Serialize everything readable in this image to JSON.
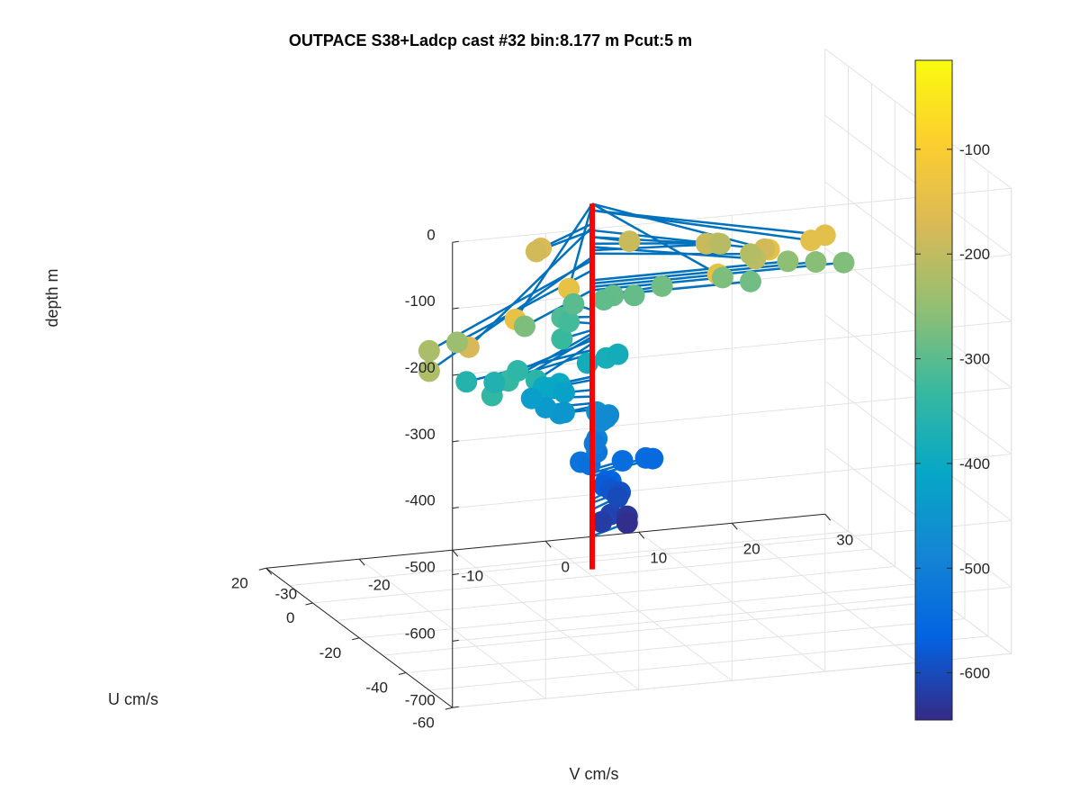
{
  "chart_data": {
    "type": "scatter",
    "title": "OUTPACE S38+Ladcp cast #32 bin:8.177 m  Pcut:5 m",
    "xlabel": "V cm/s",
    "ylabel": "U cm/s",
    "zlabel": "depth m",
    "xlim": [
      -30,
      30
    ],
    "ylim": [
      -60,
      20
    ],
    "zlim": [
      -700,
      0
    ],
    "x_ticks": [
      "-30",
      "-20",
      "-10",
      "0",
      "10",
      "20",
      "30"
    ],
    "y_ticks": [
      "-60",
      "-40",
      "-20",
      "0",
      "20"
    ],
    "z_ticks": [
      "0",
      "-100",
      "-200",
      "-300",
      "-400",
      "-500",
      "-600",
      "-700"
    ],
    "grid": true,
    "colorbar": {
      "ticks": [
        "-100",
        "-200",
        "-300",
        "-400",
        "-500",
        "-600"
      ],
      "range": [
        -645,
        -15
      ],
      "colormap": "parula"
    },
    "reference_line": {
      "color": "#ff0000",
      "z_top": -140,
      "z_bottom": -690
    },
    "points": [
      {
        "depth": -140,
        "x": -22,
        "y": -55
      },
      {
        "depth": -140,
        "x": -13,
        "y": -42
      },
      {
        "depth": -140,
        "x": 3,
        "y": -42
      },
      {
        "depth": -140,
        "x": 11,
        "y": -32
      },
      {
        "depth": -150,
        "x": 17,
        "y": -26
      },
      {
        "depth": -150,
        "x": 19,
        "y": -24
      },
      {
        "depth": -170,
        "x": -8,
        "y": -10
      },
      {
        "depth": -175,
        "x": -27,
        "y": -55
      },
      {
        "depth": -180,
        "x": -8,
        "y": -8
      },
      {
        "depth": -180,
        "x": 14,
        "y": -18
      },
      {
        "depth": -190,
        "x": 3,
        "y": -4
      },
      {
        "depth": -190,
        "x": 10,
        "y": -9
      },
      {
        "depth": -200,
        "x": 12,
        "y": -6
      },
      {
        "depth": -205,
        "x": 14,
        "y": -14
      },
      {
        "depth": -210,
        "x": 13,
        "y": -3
      },
      {
        "depth": -215,
        "x": 15,
        "y": -8
      },
      {
        "depth": -220,
        "x": -30,
        "y": -50
      },
      {
        "depth": -225,
        "x": -27,
        "y": -38
      },
      {
        "depth": -240,
        "x": -22,
        "y": -30
      },
      {
        "depth": -270,
        "x": -11,
        "y": -15
      },
      {
        "depth": -255,
        "x": 21,
        "y": 0
      },
      {
        "depth": -260,
        "x": 24,
        "y": 0
      },
      {
        "depth": -265,
        "x": 27,
        "y": 0
      },
      {
        "depth": -270,
        "x": 14,
        "y": 0
      },
      {
        "depth": -280,
        "x": 17,
        "y": 0
      },
      {
        "depth": -280,
        "x": 8,
        "y": 2
      },
      {
        "depth": -290,
        "x": 5,
        "y": 2
      },
      {
        "depth": -290,
        "x": 3,
        "y": 3
      },
      {
        "depth": -295,
        "x": 2,
        "y": 3
      },
      {
        "depth": -300,
        "x": -1,
        "y": 4
      },
      {
        "depth": -310,
        "x": -3,
        "y": 1
      },
      {
        "depth": -320,
        "x": -2,
        "y": 2
      },
      {
        "depth": -330,
        "x": -4,
        "y": -3
      },
      {
        "depth": -335,
        "x": -14,
        "y": -20
      },
      {
        "depth": -340,
        "x": -17,
        "y": -25
      },
      {
        "depth": -345,
        "x": -11,
        "y": -12
      },
      {
        "depth": -350,
        "x": -10,
        "y": -16
      },
      {
        "depth": -360,
        "x": -16,
        "y": -10
      },
      {
        "depth": -365,
        "x": -13,
        "y": -10
      },
      {
        "depth": -380,
        "x": 2,
        "y": 2
      },
      {
        "depth": -385,
        "x": 0,
        "y": 2
      },
      {
        "depth": -385,
        "x": 4,
        "y": 5
      },
      {
        "depth": -400,
        "x": -4,
        "y": -2
      },
      {
        "depth": -400,
        "x": -6,
        "y": -3
      },
      {
        "depth": -405,
        "x": -5,
        "y": -2
      },
      {
        "depth": -420,
        "x": -3,
        "y": 0
      },
      {
        "depth": -430,
        "x": -6,
        "y": 2
      },
      {
        "depth": -440,
        "x": -5,
        "y": 0
      },
      {
        "depth": -445,
        "x": -4,
        "y": -2
      },
      {
        "depth": -450,
        "x": -3,
        "y": 0
      },
      {
        "depth": -460,
        "x": 1,
        "y": 2
      },
      {
        "depth": -470,
        "x": 2,
        "y": 2
      },
      {
        "depth": -475,
        "x": 3,
        "y": 5
      },
      {
        "depth": -480,
        "x": 2,
        "y": 4
      },
      {
        "depth": -500,
        "x": 1,
        "y": 2
      },
      {
        "depth": -510,
        "x": 1,
        "y": 3
      },
      {
        "depth": -520,
        "x": 1,
        "y": 2
      },
      {
        "depth": -530,
        "x": -1,
        "y": 1
      },
      {
        "depth": -535,
        "x": 0,
        "y": 1
      },
      {
        "depth": -540,
        "x": 4,
        "y": 3
      },
      {
        "depth": -545,
        "x": 7,
        "y": 5
      },
      {
        "depth": -550,
        "x": 8,
        "y": 6
      },
      {
        "depth": -560,
        "x": 2,
        "y": 0
      },
      {
        "depth": -565,
        "x": 2,
        "y": 2
      },
      {
        "depth": -575,
        "x": 2,
        "y": 3
      },
      {
        "depth": -585,
        "x": 3,
        "y": 4
      },
      {
        "depth": -590,
        "x": 4,
        "y": 4
      },
      {
        "depth": -600,
        "x": 4,
        "y": 5
      },
      {
        "depth": -610,
        "x": 2,
        "y": 0
      },
      {
        "depth": -620,
        "x": 1,
        "y": 0
      },
      {
        "depth": -630,
        "x": 5,
        "y": 5
      },
      {
        "depth": -640,
        "x": 5,
        "y": 5
      }
    ]
  }
}
